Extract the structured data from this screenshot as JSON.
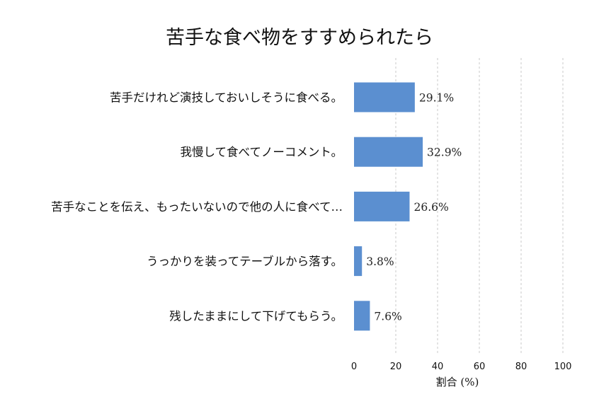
{
  "chart_data": {
    "type": "bar",
    "orientation": "horizontal",
    "title": "苦手な食べ物をすすめられたら",
    "xlabel": "割合 (%)",
    "ylabel": "",
    "xlim": [
      0,
      100
    ],
    "x_ticks": [
      0,
      20,
      40,
      60,
      80,
      100
    ],
    "grid": "vertical-dashed",
    "bar_color": "#5b8fd0",
    "categories": [
      "苦手だけれど演技しておいしそうに食べる。",
      "我慢して食べてノーコメント。",
      "苦手なことを伝え、もったいないので他の人に食べて…",
      "うっかりを装ってテーブルから落す。",
      "残したままにして下げてもらう。"
    ],
    "values": [
      29.1,
      32.9,
      26.6,
      3.8,
      7.6
    ],
    "value_labels": [
      "29.1%",
      "32.9%",
      "26.6%",
      "3.8%",
      "7.6%"
    ]
  }
}
